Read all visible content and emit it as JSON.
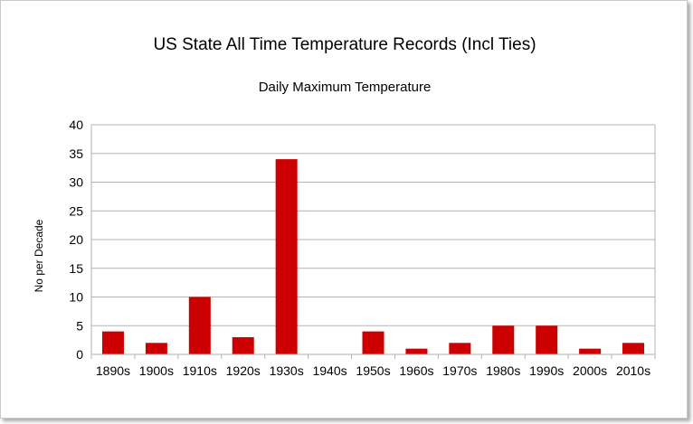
{
  "chart_data": {
    "type": "bar",
    "title": "US State All Time Temperature Records (Incl Ties)",
    "subtitle": "Daily Maximum Temperature",
    "xlabel": "",
    "ylabel": "No per Decade",
    "categories": [
      "1890s",
      "1900s",
      "1910s",
      "1920s",
      "1930s",
      "1940s",
      "1950s",
      "1960s",
      "1970s",
      "1980s",
      "1990s",
      "2000s",
      "2010s"
    ],
    "values": [
      4,
      2,
      10,
      3,
      34,
      0,
      4,
      1,
      2,
      5,
      5,
      1,
      2
    ],
    "ylim": [
      0,
      40
    ],
    "yticks": [
      0,
      5,
      10,
      15,
      20,
      25,
      30,
      35,
      40
    ],
    "grid": true,
    "legend": "none",
    "bar_color": "#cc0000"
  }
}
